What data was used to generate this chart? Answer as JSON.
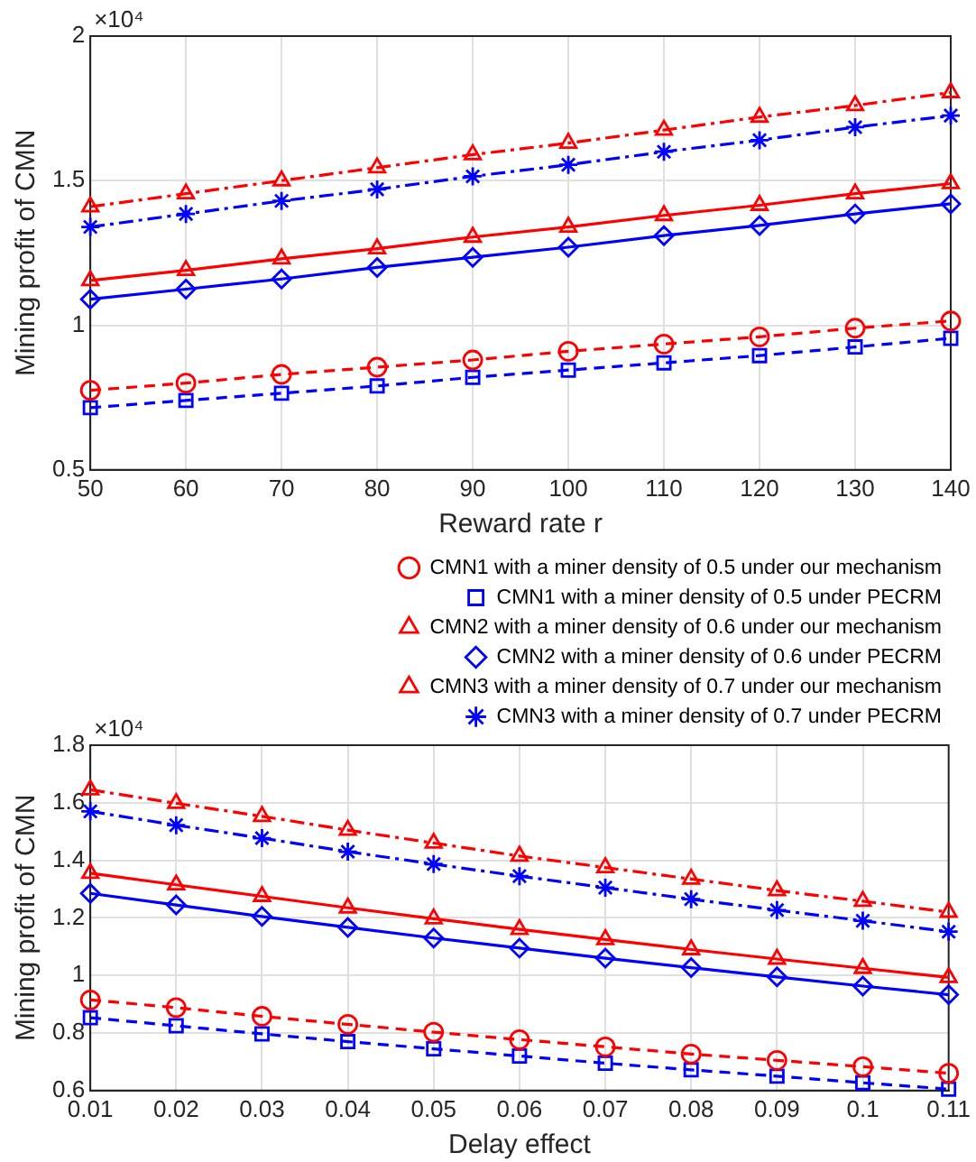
{
  "chart_data": [
    {
      "type": "line",
      "xlabel": "Reward rate r",
      "ylabel": "Mining profit of CMN",
      "annotations": [
        "×10⁴"
      ],
      "x": [
        50,
        60,
        70,
        80,
        90,
        100,
        110,
        120,
        130,
        140
      ],
      "xlim": [
        50,
        140
      ],
      "xticks": [
        50,
        60,
        70,
        80,
        90,
        100,
        110,
        120,
        130,
        140
      ],
      "ylim": [
        0.5,
        2
      ],
      "yticks": [
        0.5,
        1,
        1.5,
        2
      ],
      "grid": true,
      "legend": false,
      "series": [
        {
          "color": "#ff0000",
          "marker": "circle",
          "line_style": "dashed",
          "values": [
            0.775,
            0.8,
            0.83,
            0.855,
            0.88,
            0.91,
            0.935,
            0.96,
            0.99,
            1.015
          ]
        },
        {
          "color": "#0000ff",
          "marker": "square",
          "line_style": "dashed",
          "values": [
            0.715,
            0.74,
            0.765,
            0.79,
            0.82,
            0.845,
            0.87,
            0.895,
            0.925,
            0.955
          ]
        },
        {
          "color": "#ff0000",
          "marker": "triangle",
          "line_style": "solid",
          "values": [
            1.155,
            1.19,
            1.23,
            1.265,
            1.305,
            1.34,
            1.38,
            1.415,
            1.455,
            1.49
          ]
        },
        {
          "color": "#0000ff",
          "marker": "diamond",
          "line_style": "solid",
          "values": [
            1.09,
            1.125,
            1.16,
            1.2,
            1.235,
            1.27,
            1.31,
            1.345,
            1.385,
            1.42
          ]
        },
        {
          "color": "#ff0000",
          "marker": "triangle",
          "line_style": "dashdot",
          "values": [
            1.41,
            1.455,
            1.5,
            1.545,
            1.59,
            1.63,
            1.675,
            1.72,
            1.76,
            1.805
          ]
        },
        {
          "color": "#0000ff",
          "marker": "cross",
          "line_style": "dashdot",
          "values": [
            1.34,
            1.385,
            1.43,
            1.47,
            1.515,
            1.555,
            1.6,
            1.64,
            1.685,
            1.725
          ]
        }
      ]
    },
    {
      "type": "line",
      "xlabel": "Delay effect",
      "ylabel": "Mining profit of CMN",
      "annotations": [
        "×10⁴"
      ],
      "x": [
        0.01,
        0.02,
        0.03,
        0.04,
        0.05,
        0.06,
        0.07,
        0.08,
        0.09,
        0.1,
        0.11
      ],
      "xlim": [
        0.01,
        0.11
      ],
      "xticks": [
        0.01,
        0.02,
        0.03,
        0.04,
        0.05,
        0.06,
        0.07,
        0.08,
        0.09,
        0.1,
        0.11
      ],
      "ylim": [
        0.6,
        1.8
      ],
      "yticks": [
        0.6,
        0.8,
        1,
        1.2,
        1.4,
        1.6,
        1.8
      ],
      "grid": true,
      "legend": "top right",
      "series": [
        {
          "name": "CMN1 with a miner density of 0.5 under our mechanism",
          "color": "#ff0000",
          "marker": "circle",
          "line_style": "dashed",
          "values": [
            0.915,
            0.888,
            0.858,
            0.83,
            0.803,
            0.777,
            0.752,
            0.727,
            0.705,
            0.683,
            0.66
          ]
        },
        {
          "name": "CMN1 with a miner density of 0.5 under PECRM",
          "color": "#0000ff",
          "marker": "square",
          "line_style": "dashed",
          "values": [
            0.853,
            0.825,
            0.797,
            0.77,
            0.745,
            0.72,
            0.695,
            0.672,
            0.65,
            0.627,
            0.605
          ]
        },
        {
          "name": "CMN2 with a miner density of 0.6 under our mechanism",
          "color": "#ff0000",
          "marker": "triangle",
          "line_style": "solid",
          "values": [
            1.355,
            1.315,
            1.275,
            1.235,
            1.197,
            1.16,
            1.125,
            1.09,
            1.057,
            1.025,
            0.993
          ]
        },
        {
          "name": "CMN2 with a miner density of 0.6 under PECRM",
          "color": "#0000ff",
          "marker": "diamond",
          "line_style": "solid",
          "values": [
            1.285,
            1.245,
            1.205,
            1.167,
            1.13,
            1.095,
            1.06,
            1.027,
            0.995,
            0.963,
            0.933
          ]
        },
        {
          "name": "CMN3 with a miner density of 0.7 under our mechanism",
          "color": "#ff0000",
          "marker": "triangle",
          "line_style": "dashdot",
          "values": [
            1.645,
            1.598,
            1.553,
            1.505,
            1.46,
            1.415,
            1.375,
            1.335,
            1.295,
            1.258,
            1.22
          ]
        },
        {
          "name": "CMN3 with a miner density of 0.7 under PECRM",
          "color": "#0000ff",
          "marker": "cross",
          "line_style": "dashdot",
          "values": [
            1.57,
            1.522,
            1.477,
            1.43,
            1.387,
            1.345,
            1.305,
            1.265,
            1.227,
            1.19,
            1.152
          ]
        }
      ]
    }
  ]
}
